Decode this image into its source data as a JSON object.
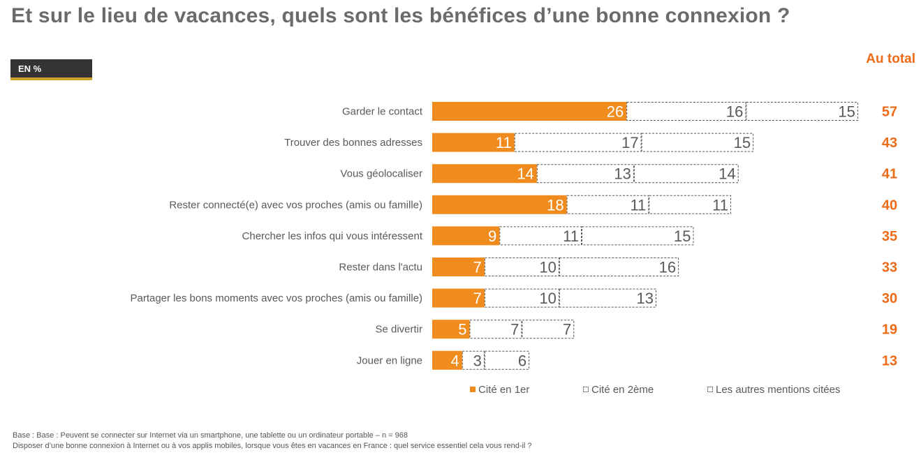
{
  "title": "Et sur le lieu de vacances, quels sont les bénéfices d’une bonne connexion ?",
  "unit_badge": "EN %",
  "total_header": "Au total",
  "colors": {
    "first": "#f08c1e",
    "total": "#ed6b16",
    "text": "#595959",
    "dash": "#555555"
  },
  "chart_data": {
    "type": "bar",
    "orientation": "horizontal",
    "stacked": true,
    "categories": [
      "Garder le contact",
      "Trouver des bonnes adresses",
      "Vous géolocaliser",
      "Rester connecté(e) avec vos proches (amis ou famille)",
      "Chercher les infos qui vous intéressent",
      "Rester dans l'actu",
      "Partager les bons moments avec vos proches (amis ou famille)",
      "Se divertir",
      "Jouer en ligne"
    ],
    "series": [
      {
        "name": "Cité en 1er",
        "values": [
          26,
          11,
          14,
          18,
          9,
          7,
          7,
          5,
          4
        ]
      },
      {
        "name": "Cité en 2ème",
        "values": [
          16,
          17,
          13,
          11,
          11,
          10,
          10,
          7,
          3
        ]
      },
      {
        "name": "Les autres mentions citées",
        "values": [
          15,
          15,
          14,
          11,
          15,
          16,
          13,
          7,
          6
        ]
      }
    ],
    "totals": [
      57,
      43,
      41,
      40,
      35,
      33,
      30,
      19,
      13
    ],
    "legend_position": "bottom"
  },
  "footnote": {
    "line1": "Base : Base : Peuvent se connecter sur Internet via un smartphone, une tablette ou un ordinateur portable – n = 968",
    "line2": "Disposer d’une bonne connexion à Internet ou à vos applis mobiles, lorsque vous êtes en vacances en France : quel service essentiel cela vous rend-il ?"
  }
}
